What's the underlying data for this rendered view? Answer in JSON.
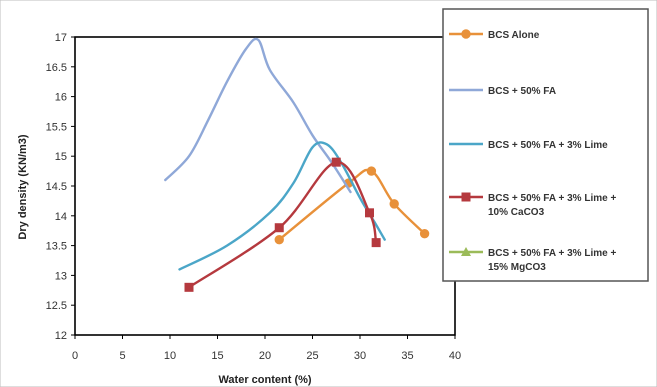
{
  "chart_data": {
    "type": "line",
    "title": "",
    "xlabel": "Water content (%)",
    "ylabel": "Dry density (KN/m3)",
    "xlim": [
      0,
      40
    ],
    "ylim": [
      12,
      17
    ],
    "xticks": [
      0,
      5,
      10,
      15,
      20,
      25,
      30,
      35,
      40
    ],
    "yticks": [
      12,
      12.5,
      13,
      13.5,
      14,
      14.5,
      15,
      15.5,
      16,
      16.5,
      17
    ],
    "grid": false,
    "legend_position": "right",
    "series": [
      {
        "name": "BCS Alone",
        "color": "#E8913A",
        "marker": "circle",
        "x": [
          21.5,
          28.8,
          31.2,
          33.6,
          36.8
        ],
        "y": [
          13.6,
          14.55,
          14.75,
          14.2,
          13.7
        ]
      },
      {
        "name": "BCS + 50% FA",
        "color": "#8FA8D8",
        "marker": "none",
        "x": [
          9.5,
          12,
          14,
          16,
          18,
          19.3,
          20.5,
          23,
          25,
          27,
          29
        ],
        "y": [
          14.6,
          15.0,
          15.6,
          16.25,
          16.8,
          16.95,
          16.45,
          15.9,
          15.35,
          14.9,
          14.4
        ]
      },
      {
        "name": "BCS + 50% FA + 3% Lime",
        "color": "#4BA6C8",
        "marker": "none",
        "x": [
          11,
          16,
          20.5,
          23,
          25,
          26.5,
          28,
          30,
          31.5,
          32.6
        ],
        "y": [
          13.1,
          13.5,
          14.05,
          14.55,
          15.15,
          15.2,
          14.9,
          14.3,
          13.9,
          13.6
        ]
      },
      {
        "name": "BCS + 50% FA + 3% Lime + 10% CaCO3",
        "color": "#B5393E",
        "marker": "square",
        "x": [
          12,
          21.5,
          27.5,
          31,
          31.7
        ],
        "y": [
          12.8,
          13.8,
          14.9,
          14.05,
          13.55
        ]
      },
      {
        "name": "BCS + 50% FA + 3% Lime + 15% MgCO3",
        "color": "#9BBB59",
        "marker": "triangle",
        "x": [],
        "y": []
      }
    ],
    "legend_lines": [
      [
        "BCS Alone"
      ],
      [
        "BCS + 50% FA"
      ],
      [
        "BCS + 50% FA + 3% Lime"
      ],
      [
        "BCS + 50% FA + 3% Lime +",
        "10% CaCO3"
      ],
      [
        "BCS + 50% FA + 3% Lime +",
        "15% MgCO3"
      ]
    ]
  }
}
